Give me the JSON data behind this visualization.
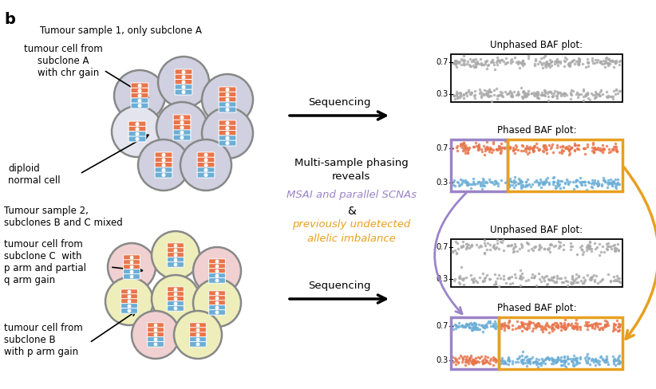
{
  "title_label": "b",
  "background_color": "#ffffff",
  "orange_color": "#E8754A",
  "blue_color": "#6BAED6",
  "gray_cell_bg": "#D0D0E0",
  "gray_cell_border": "#888888",
  "light_gray_cell_bg": "#E4E4EE",
  "yellow_cell_bg": "#EEEEBB",
  "pink_cell_bg": "#F0D0D0",
  "purple_box_color": "#9B84C8",
  "orange_box_color": "#E8A020",
  "text_msai": "MSAI and parallel SCNAs",
  "text_allelic_1": "previously undetected",
  "text_allelic_2": "allelic imbalance",
  "text_reveals_1": "Multi-sample phasing",
  "text_reveals_2": "reveals",
  "text_sequencing": "Sequencing",
  "text_unphased1": "Unphased BAF plot:",
  "text_phased1": "Phased BAF plot:",
  "text_unphased2": "Unphased BAF plot:",
  "text_phased2": "Phased BAF plot:",
  "figsize": [
    8.22,
    4.88
  ],
  "dpi": 100
}
